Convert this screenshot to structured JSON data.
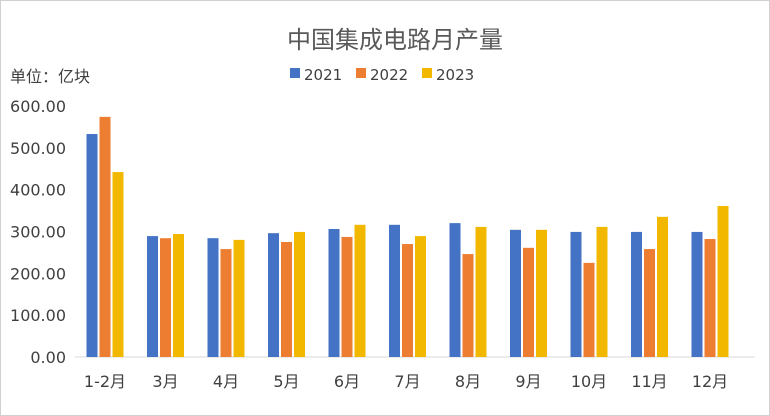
{
  "chart_data": {
    "type": "bar",
    "title": "中国集成电路月产量",
    "unit_label": "单位：亿块",
    "xlabel": "",
    "ylabel": "",
    "ylim": [
      0,
      600
    ],
    "yticks": [
      "0.00",
      "100.00",
      "200.00",
      "300.00",
      "400.00",
      "500.00",
      "600.00"
    ],
    "grid": false,
    "legend_position": "top-center",
    "categories": [
      "1-2月",
      "3月",
      "4月",
      "5月",
      "6月",
      "7月",
      "8月",
      "9月",
      "10月",
      "11月",
      "12月"
    ],
    "series": [
      {
        "name": "2021",
        "color": "#4472C4",
        "values": [
          533,
          289,
          284,
          296,
          306,
          316,
          320,
          304,
          299,
          299,
          299
        ]
      },
      {
        "name": "2022",
        "color": "#ED7D31",
        "values": [
          574,
          284,
          258,
          275,
          287,
          270,
          246,
          261,
          225,
          258,
          282
        ]
      },
      {
        "name": "2023",
        "color": "#F2B800",
        "values": [
          442,
          294,
          280,
          299,
          316,
          289,
          311,
          304,
          311,
          335,
          361
        ]
      }
    ]
  }
}
